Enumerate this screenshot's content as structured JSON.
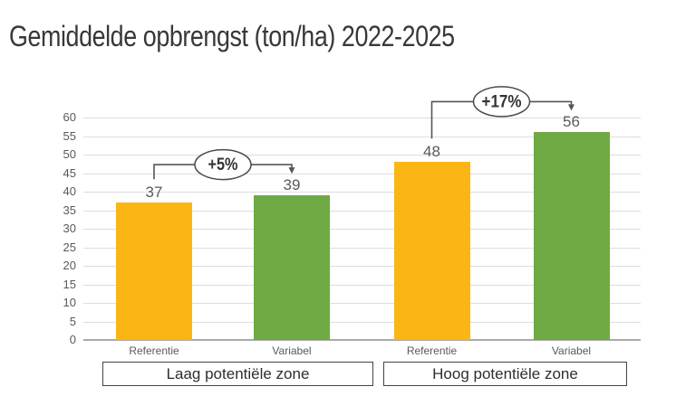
{
  "title": "Gemiddelde opbrengst (ton/ha) 2022-2025",
  "chart_data": {
    "type": "bar",
    "title": "Gemiddelde opbrengst (ton/ha) 2022-2025",
    "categories": [
      "Referentie",
      "Variabel",
      "Referentie",
      "Variabel"
    ],
    "values": [
      37,
      39,
      48,
      56
    ],
    "bar_colors": [
      "#FBB615",
      "#6FA944",
      "#FBB615",
      "#6FA944"
    ],
    "series_colors": {
      "Referentie": "#FBB615",
      "Variabel": "#6FA944"
    },
    "group_labels": [
      "Laag potentiële zone",
      "Hoog potentiële zone"
    ],
    "groups": [
      {
        "zone": "Laag potentiële zone",
        "annotation": "+5%",
        "bars": [
          {
            "label": "Referentie",
            "value": 37
          },
          {
            "label": "Variabel",
            "value": 39
          }
        ]
      },
      {
        "zone": "Hoog potentiële zone",
        "annotation": "+17%",
        "bars": [
          {
            "label": "Referentie",
            "value": 48
          },
          {
            "label": "Variabel",
            "value": 56
          }
        ]
      }
    ],
    "annotations": [
      {
        "label": "+5%",
        "from_index": 0,
        "to_index": 1
      },
      {
        "label": "+17%",
        "from_index": 2,
        "to_index": 3
      }
    ],
    "xlabel": "",
    "ylabel": "",
    "ylim": [
      0,
      60
    ],
    "ytick_step": 5,
    "yticks": [
      0,
      5,
      10,
      15,
      20,
      25,
      30,
      35,
      40,
      45,
      50,
      55,
      60
    ],
    "grid": true,
    "legend": "none",
    "styles": {
      "gridline_color": "#DDDDDD",
      "axis_line_color": "#A9A9A9",
      "tick_text_color": "#595959",
      "value_label_color": "#595959",
      "title_color": "#383838",
      "annotation_line_color": "#555555",
      "annotation_border_color": "#4A4A4A",
      "annotation_text_color": "#333333",
      "zone_box_border_color": "#444444",
      "zone_box_text_color": "#2E2E2E"
    }
  }
}
